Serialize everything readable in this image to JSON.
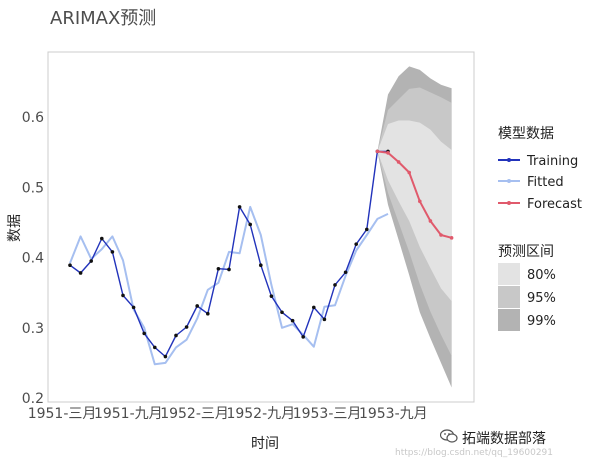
{
  "page": {
    "title": "ARIMAX预测"
  },
  "chart_data": {
    "type": "line",
    "title": "ARIMAX预测",
    "xlabel": "时间",
    "ylabel": "数据",
    "x_tick_labels": [
      "1951-三月",
      "1951-九月",
      "1952-三月",
      "1952-九月",
      "1953-三月",
      "1953-九月"
    ],
    "y_tick_labels": [
      "0.2",
      "0.3",
      "0.4",
      "0.5",
      "0.6"
    ],
    "ylim": [
      0.2,
      0.65
    ],
    "grid": false,
    "legend": {
      "title": "模型数据",
      "position": "right"
    },
    "colors": {
      "training": "#2233bb",
      "fitted": "#a6bff0",
      "forecast": "#e05a6c"
    },
    "series": [
      {
        "name": "Training",
        "x": [
          1,
          2,
          3,
          4,
          5,
          6,
          7,
          8,
          9,
          10,
          11,
          12,
          13,
          14,
          15,
          16,
          17,
          18,
          19,
          20,
          21,
          22,
          23,
          24,
          25,
          26,
          27,
          28,
          29,
          30,
          31
        ],
        "values": [
          0.389,
          0.378,
          0.395,
          0.427,
          0.408,
          0.346,
          0.329,
          0.292,
          0.272,
          0.259,
          0.289,
          0.301,
          0.331,
          0.32,
          0.384,
          0.383,
          0.472,
          0.447,
          0.389,
          0.345,
          0.322,
          0.31,
          0.287,
          0.329,
          0.312,
          0.361,
          0.379,
          0.419,
          0.44,
          0.551,
          0.551
        ]
      },
      {
        "name": "Fitted",
        "x": [
          1,
          2,
          3,
          4,
          5,
          6,
          7,
          8,
          9,
          10,
          11,
          12,
          13,
          14,
          15,
          16,
          17,
          18,
          19,
          20,
          21,
          22,
          23,
          24,
          25,
          26,
          27,
          28,
          29,
          30,
          31
        ],
        "values": [
          0.392,
          0.43,
          0.398,
          0.412,
          0.43,
          0.396,
          0.326,
          0.3,
          0.248,
          0.25,
          0.272,
          0.283,
          0.313,
          0.354,
          0.364,
          0.408,
          0.406,
          0.472,
          0.432,
          0.361,
          0.3,
          0.305,
          0.29,
          0.273,
          0.33,
          0.332,
          0.374,
          0.41,
          0.432,
          0.455,
          0.462
        ]
      },
      {
        "name": "Forecast",
        "x": [
          30,
          31,
          32,
          33,
          34,
          35,
          36,
          37
        ],
        "values": [
          0.551,
          0.549,
          0.536,
          0.521,
          0.48,
          0.452,
          0.432,
          0.428
        ]
      }
    ],
    "intervals": {
      "title": "预测区间",
      "x": [
        30,
        31,
        32,
        33,
        34,
        35,
        36,
        37
      ],
      "bands": [
        {
          "name": "80%",
          "color": "#e3e3e3",
          "upper": [
            0.551,
            0.59,
            0.595,
            0.595,
            0.592,
            0.582,
            0.565,
            0.553
          ],
          "lower": [
            0.551,
            0.51,
            0.48,
            0.452,
            0.415,
            0.385,
            0.356,
            0.338
          ]
        },
        {
          "name": "95%",
          "color": "#c8c8c8",
          "upper": [
            0.551,
            0.61,
            0.625,
            0.64,
            0.642,
            0.635,
            0.628,
            0.62
          ],
          "lower": [
            0.551,
            0.492,
            0.45,
            0.408,
            0.362,
            0.323,
            0.29,
            0.26
          ]
        },
        {
          "name": "99%",
          "color": "#b3b3b3",
          "upper": [
            0.551,
            0.632,
            0.658,
            0.672,
            0.667,
            0.655,
            0.646,
            0.641
          ],
          "lower": [
            0.551,
            0.475,
            0.425,
            0.375,
            0.322,
            0.285,
            0.25,
            0.215
          ]
        }
      ]
    }
  },
  "legend_items": {
    "training": "Training",
    "fitted": "Fitted",
    "forecast": "Forecast",
    "band80": "80%",
    "band95": "95%",
    "band99": "99%"
  },
  "watermark": {
    "text": "拓端数据部落",
    "sub": "https://blog.csdn.net/qq_19600291"
  }
}
